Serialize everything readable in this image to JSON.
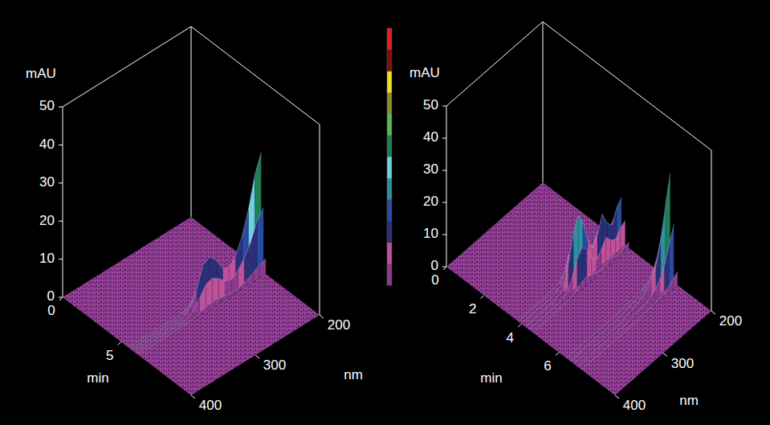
{
  "chart_data": [
    {
      "type": "surface3d",
      "z_label": "mAU",
      "x_label": "min",
      "y_label": "nm",
      "xlim": [
        0,
        11
      ],
      "xticks": [
        0,
        5
      ],
      "ylim": [
        200,
        400
      ],
      "yticks": [
        200,
        300,
        400
      ],
      "zlim": [
        0,
        50
      ],
      "zticks": [
        0,
        10,
        20,
        30,
        40,
        50
      ],
      "wavelengths": [
        200,
        210,
        220,
        230,
        240,
        250,
        260,
        270,
        280,
        290,
        300,
        310,
        320,
        330,
        340,
        350,
        360,
        370,
        380,
        390,
        400
      ],
      "spectra": [
        {
          "time": 5.6,
          "values": [
            4.7,
            3.9,
            2.7,
            1.8,
            1.2,
            0.9,
            1.1,
            1.5,
            1.8,
            1.7,
            0.9,
            0.3,
            0.1,
            0,
            0,
            0,
            0,
            0,
            0,
            0,
            0
          ]
        },
        {
          "time": 5.8,
          "values": [
            18.6,
            15.6,
            10.8,
            7.2,
            4.8,
            3.6,
            4.2,
            6,
            7.2,
            6.6,
            3.6,
            1.2,
            0.3,
            0,
            0,
            0,
            0,
            0,
            0,
            0,
            0
          ]
        },
        {
          "time": 6.0,
          "values": [
            31,
            26,
            18,
            12,
            8,
            6,
            7,
            10,
            12,
            11,
            6,
            2,
            0.5,
            0,
            0,
            0,
            0,
            0,
            0,
            0,
            0
          ]
        },
        {
          "time": 6.2,
          "values": [
            17,
            14.5,
            10,
            6.8,
            4.5,
            3.4,
            4,
            5.7,
            6.8,
            6.2,
            3.4,
            1.1,
            0.3,
            0,
            0,
            0,
            0,
            0,
            0,
            0,
            0
          ]
        },
        {
          "time": 6.4,
          "values": [
            4,
            3.3,
            2.3,
            1.5,
            1,
            0.8,
            0.9,
            1.3,
            1.5,
            1.4,
            0.8,
            0.3,
            0.1,
            0,
            0,
            0,
            0,
            0,
            0,
            0,
            0
          ]
        }
      ]
    },
    {
      "type": "surface3d",
      "z_label": "mAU",
      "x_label": "min",
      "y_label": "nm",
      "xlim": [
        0,
        9
      ],
      "xticks": [
        0,
        2,
        4,
        6
      ],
      "ylim": [
        200,
        400
      ],
      "yticks": [
        200,
        300,
        400
      ],
      "zlim": [
        0,
        50
      ],
      "zticks": [
        0,
        10,
        20,
        30,
        40,
        50
      ],
      "wavelengths": [
        200,
        210,
        220,
        230,
        240,
        250,
        260,
        270,
        280,
        290,
        300,
        310,
        320,
        330,
        340,
        350,
        360,
        370,
        380,
        390,
        400
      ],
      "spectra": [
        {
          "time": 3.8,
          "values": [
            2.1,
            1.8,
            1.2,
            1.5,
            2.1,
            1.4,
            0.9,
            1.5,
            2.6,
            3,
            2.4,
            1.2,
            0.3,
            0.1,
            0,
            0,
            0,
            0,
            0,
            0,
            0
          ]
        },
        {
          "time": 4.0,
          "values": [
            8.4,
            7.2,
            4.8,
            6,
            8.4,
            5.4,
            3.6,
            6,
            10.2,
            12,
            9.6,
            4.8,
            1.2,
            0.3,
            0,
            0,
            0,
            0,
            0,
            0,
            0
          ]
        },
        {
          "time": 4.2,
          "values": [
            14,
            12,
            8,
            10,
            14,
            9,
            6,
            10,
            17,
            20,
            16,
            8,
            2,
            0.5,
            0,
            0,
            0,
            0,
            0,
            0,
            0
          ]
        },
        {
          "time": 4.4,
          "values": [
            7.7,
            6.6,
            4.4,
            5.5,
            7.7,
            5,
            3.3,
            5.5,
            9.4,
            11,
            8.8,
            4.4,
            1.1,
            0.3,
            0,
            0,
            0,
            0,
            0,
            0,
            0
          ]
        },
        {
          "time": 4.6,
          "values": [
            1.8,
            1.5,
            1,
            1.3,
            1.8,
            1.2,
            0.8,
            1.3,
            2.2,
            2.6,
            2.1,
            1,
            0.3,
            0.1,
            0,
            0,
            0,
            0,
            0,
            0,
            0
          ]
        },
        {
          "time": 6.4,
          "values": [
            5,
            3.6,
            2.1,
            1.2,
            0.8,
            0.5,
            0.3,
            0.2,
            0.2,
            0.1,
            0,
            0,
            0,
            0,
            0,
            0,
            0,
            0,
            0,
            0,
            0
          ]
        },
        {
          "time": 6.6,
          "values": [
            19.8,
            14.4,
            8.4,
            4.8,
            3,
            1.8,
            1.2,
            0.9,
            0.6,
            0.3,
            0,
            0,
            0,
            0,
            0,
            0,
            0,
            0,
            0,
            0,
            0
          ]
        },
        {
          "time": 6.8,
          "values": [
            33,
            24,
            14,
            8,
            5,
            3,
            2,
            1.5,
            1,
            0.5,
            0,
            0,
            0,
            0,
            0,
            0,
            0,
            0,
            0,
            0,
            0
          ]
        },
        {
          "time": 7.0,
          "values": [
            18,
            13,
            7.7,
            4.4,
            2.8,
            1.7,
            1.1,
            0.8,
            0.6,
            0.3,
            0,
            0,
            0,
            0,
            0,
            0,
            0,
            0,
            0,
            0,
            0
          ]
        },
        {
          "time": 7.2,
          "values": [
            4.3,
            3.1,
            1.8,
            1,
            0.7,
            0.4,
            0.3,
            0.2,
            0.1,
            0.1,
            0,
            0,
            0,
            0,
            0,
            0,
            0,
            0,
            0,
            0,
            0
          ]
        }
      ]
    }
  ],
  "colorbar": {
    "range": [
      0,
      50
    ],
    "colors": [
      "#8b3a8f",
      "#c0509a",
      "#2b2f7a",
      "#2c4aa0",
      "#2f8f9f",
      "#6fd0e0",
      "#1f7f55",
      "#5ab45a",
      "#8c8c2e",
      "#f0e020",
      "#7a1010",
      "#e02020"
    ]
  }
}
